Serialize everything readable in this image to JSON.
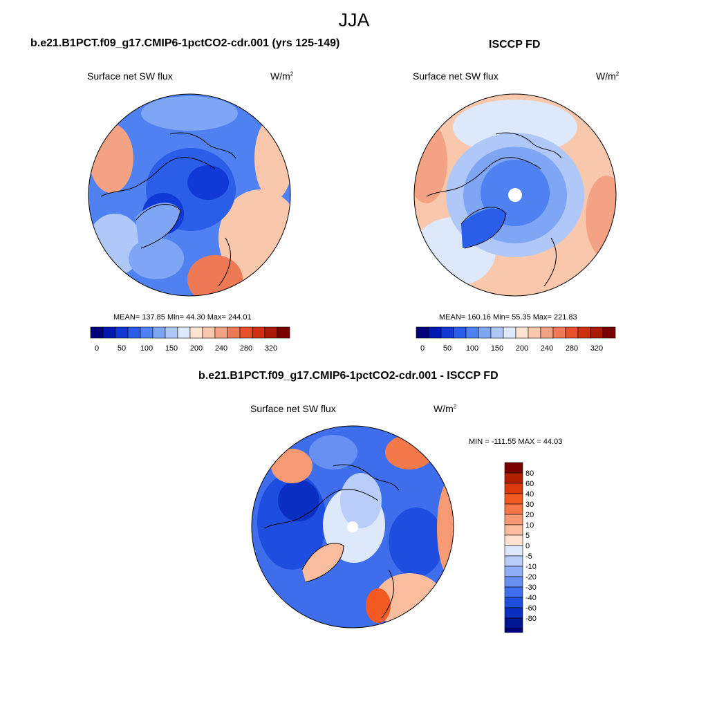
{
  "season": "JJA",
  "panels": [
    {
      "title": "b.e21.B1PCT.f09_g17.CMIP6-1pctCO2-cdr.001 (yrs 125-149)",
      "variable": "Surface net SW flux",
      "units_base": "W/m",
      "units_exp": "2",
      "stats": "MEAN= 137.85  Min=  44.30  Max= 244.01",
      "map_fill": "#4f82f0"
    },
    {
      "title": "ISCCP FD",
      "variable": "Surface net SW flux",
      "units_base": "W/m",
      "units_exp": "2",
      "stats": "MEAN= 160.16  Min=  55.35  Max= 221.83",
      "map_fill": "#f8c7ac"
    }
  ],
  "shared_colorbar": {
    "colors": [
      "#00007a",
      "#0018b0",
      "#1039d6",
      "#2a5de8",
      "#4f82f0",
      "#7fa6f5",
      "#b0c8f8",
      "#dde8fb",
      "#fde3d0",
      "#f8c7ac",
      "#f3a383",
      "#ee7a55",
      "#e5522c",
      "#cd3110",
      "#a81a04",
      "#7a0000"
    ],
    "labels": [
      "0",
      "50",
      "100",
      "150",
      "200",
      "240",
      "280",
      "320"
    ]
  },
  "diff_panel": {
    "title": "b.e21.B1PCT.f09_g17.CMIP6-1pctCO2-cdr.001 - ISCCP FD",
    "variable": "Surface net SW flux",
    "units_base": "W/m",
    "units_exp": "2",
    "minmax": "MIN = -111.55 MAX =  44.03",
    "colorbar_colors": [
      "#7a0000",
      "#b41e02",
      "#dc3a0e",
      "#f25a22",
      "#f4794a",
      "#f69a73",
      "#f9bd9d",
      "#fde2cf",
      "#dde8fb",
      "#b8cef9",
      "#8fb0f6",
      "#6690f2",
      "#3f6eec",
      "#1d4ee0",
      "#0a2fc2",
      "#001693",
      "#00007a"
    ],
    "colorbar_labels": [
      "80",
      "60",
      "40",
      "30",
      "20",
      "10",
      "5",
      "0",
      "-5",
      "-10",
      "-20",
      "-30",
      "-40",
      "-60",
      "-80"
    ],
    "map_fill": "#3f6eec"
  }
}
